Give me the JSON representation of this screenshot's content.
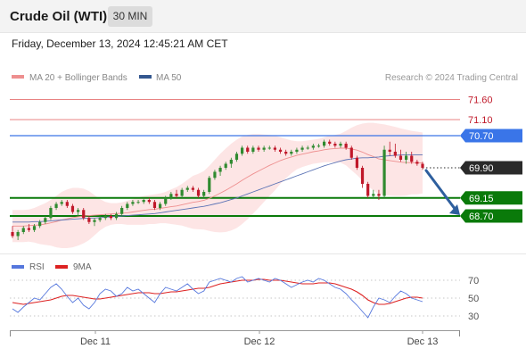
{
  "header": {
    "title": "Crude Oil (WTI)",
    "timeframe": "30 MIN",
    "datetime": "Friday, December 13, 2024 12:45:21 AM CET"
  },
  "legend": {
    "ma20_label": "MA 20 + Bollinger Bands",
    "ma50_label": "MA 50",
    "credit": "Research © 2024 Trading Central"
  },
  "colors": {
    "resistance": "#e05a5a",
    "resistance_main": "#3a75e8",
    "support": "#0a7a0a",
    "current": "#2a2a2a",
    "candle_up": "#2f8a2f",
    "candle_down": "#c0182a",
    "bb_fill": "#fde0e0",
    "ma20": "#ee8f8f",
    "ma50": "#5b73b5",
    "rsi": "#5577dd",
    "rsi_ma": "#dd2222",
    "arrow": "#2e5f9e"
  },
  "chart_data": [
    {
      "type": "candlestick",
      "title": "",
      "x_ticks": [
        "Dec 11",
        "Dec 12",
        "Dec 13"
      ],
      "ylim": [
        67.9,
        71.9
      ],
      "levels": [
        {
          "label": "71.60",
          "value": 71.6,
          "kind": "resistance"
        },
        {
          "label": "71.10",
          "value": 71.1,
          "kind": "resistance"
        },
        {
          "label": "70.70",
          "value": 70.7,
          "kind": "resistance_main"
        },
        {
          "label": "69.90",
          "value": 69.9,
          "kind": "current"
        },
        {
          "label": "69.15",
          "value": 69.15,
          "kind": "support"
        },
        {
          "label": "68.70",
          "value": 68.7,
          "kind": "support"
        }
      ],
      "candles": [
        [
          68.3,
          68.45,
          68.15,
          68.2
        ],
        [
          68.2,
          68.35,
          68.1,
          68.3
        ],
        [
          68.3,
          68.45,
          68.25,
          68.4
        ],
        [
          68.4,
          68.5,
          68.3,
          68.35
        ],
        [
          68.35,
          68.5,
          68.3,
          68.45
        ],
        [
          68.45,
          68.6,
          68.4,
          68.55
        ],
        [
          68.55,
          68.7,
          68.5,
          68.65
        ],
        [
          68.65,
          68.95,
          68.6,
          68.9
        ],
        [
          68.9,
          69.05,
          68.85,
          69.0
        ],
        [
          69.0,
          69.1,
          68.95,
          69.05
        ],
        [
          69.05,
          69.1,
          68.9,
          68.95
        ],
        [
          68.95,
          69.0,
          68.75,
          68.8
        ],
        [
          68.8,
          68.9,
          68.7,
          68.85
        ],
        [
          68.85,
          68.9,
          68.6,
          68.65
        ],
        [
          68.65,
          68.7,
          68.5,
          68.55
        ],
        [
          68.55,
          68.65,
          68.45,
          68.6
        ],
        [
          68.6,
          68.7,
          68.55,
          68.65
        ],
        [
          68.65,
          68.75,
          68.6,
          68.7
        ],
        [
          68.7,
          68.75,
          68.6,
          68.65
        ],
        [
          68.65,
          68.8,
          68.6,
          68.75
        ],
        [
          68.75,
          68.95,
          68.7,
          68.9
        ],
        [
          68.9,
          69.05,
          68.85,
          69.0
        ],
        [
          69.0,
          69.1,
          68.95,
          69.05
        ],
        [
          69.05,
          69.1,
          69.0,
          69.05
        ],
        [
          69.05,
          69.15,
          69.0,
          69.1
        ],
        [
          69.1,
          69.15,
          69.0,
          69.05
        ],
        [
          69.05,
          69.1,
          68.85,
          68.9
        ],
        [
          68.9,
          69.05,
          68.85,
          69.0
        ],
        [
          69.0,
          69.2,
          68.95,
          69.15
        ],
        [
          69.15,
          69.3,
          69.1,
          69.25
        ],
        [
          69.25,
          69.35,
          69.15,
          69.2
        ],
        [
          69.2,
          69.4,
          69.15,
          69.35
        ],
        [
          69.35,
          69.45,
          69.3,
          69.4
        ],
        [
          69.4,
          69.45,
          69.3,
          69.35
        ],
        [
          69.35,
          69.4,
          69.15,
          69.2
        ],
        [
          69.2,
          69.35,
          69.15,
          69.3
        ],
        [
          69.3,
          69.7,
          69.25,
          69.65
        ],
        [
          69.65,
          69.85,
          69.6,
          69.8
        ],
        [
          69.8,
          69.95,
          69.7,
          69.9
        ],
        [
          69.9,
          70.05,
          69.85,
          70.0
        ],
        [
          70.0,
          70.15,
          69.9,
          70.1
        ],
        [
          70.1,
          70.3,
          70.05,
          70.25
        ],
        [
          70.25,
          70.45,
          70.2,
          70.4
        ],
        [
          70.4,
          70.45,
          70.25,
          70.3
        ],
        [
          70.3,
          70.45,
          70.25,
          70.4
        ],
        [
          70.4,
          70.45,
          70.3,
          70.35
        ],
        [
          70.35,
          70.45,
          70.3,
          70.4
        ],
        [
          70.4,
          70.45,
          70.35,
          70.4
        ],
        [
          70.4,
          70.45,
          70.3,
          70.35
        ],
        [
          70.35,
          70.4,
          70.25,
          70.3
        ],
        [
          70.3,
          70.35,
          70.2,
          70.25
        ],
        [
          70.25,
          70.35,
          70.2,
          70.3
        ],
        [
          70.3,
          70.4,
          70.25,
          70.35
        ],
        [
          70.35,
          70.45,
          70.3,
          70.4
        ],
        [
          70.4,
          70.45,
          70.35,
          70.4
        ],
        [
          70.4,
          70.5,
          70.35,
          70.45
        ],
        [
          70.45,
          70.5,
          70.4,
          70.45
        ],
        [
          70.45,
          70.6,
          70.4,
          70.55
        ],
        [
          70.55,
          70.6,
          70.45,
          70.5
        ],
        [
          70.5,
          70.55,
          70.4,
          70.45
        ],
        [
          70.45,
          70.55,
          70.4,
          70.5
        ],
        [
          70.5,
          70.55,
          70.35,
          70.4
        ],
        [
          70.4,
          70.45,
          70.1,
          70.15
        ],
        [
          70.15,
          70.2,
          69.85,
          69.9
        ],
        [
          69.9,
          69.95,
          69.4,
          69.5
        ],
        [
          69.5,
          69.55,
          69.15,
          69.2
        ],
        [
          69.2,
          69.35,
          69.15,
          69.25
        ],
        [
          69.25,
          69.35,
          69.1,
          69.2
        ],
        [
          69.2,
          70.45,
          69.15,
          70.35
        ],
        [
          70.35,
          70.55,
          70.2,
          70.3
        ],
        [
          70.3,
          70.5,
          70.15,
          70.2
        ],
        [
          70.2,
          70.35,
          70.05,
          70.1
        ],
        [
          70.1,
          70.3,
          70.0,
          70.2
        ],
        [
          70.2,
          70.3,
          70.0,
          70.05
        ],
        [
          70.05,
          70.1,
          69.95,
          70.0
        ],
        [
          70.0,
          70.05,
          69.85,
          69.9
        ]
      ],
      "ma20": [
        68.45,
        68.45,
        68.45,
        68.46,
        68.47,
        68.48,
        68.5,
        68.53,
        68.56,
        68.6,
        68.63,
        68.66,
        68.68,
        68.7,
        68.71,
        68.72,
        68.73,
        68.74,
        68.75,
        68.76,
        68.77,
        68.78,
        68.8,
        68.82,
        68.84,
        68.86,
        68.87,
        68.89,
        68.91,
        68.93,
        68.95,
        68.98,
        69.01,
        69.04,
        69.06,
        69.09,
        69.14,
        69.2,
        69.27,
        69.34,
        69.42,
        69.5,
        69.59,
        69.67,
        69.75,
        69.82,
        69.89,
        69.96,
        70.02,
        70.08,
        70.13,
        70.17,
        70.21,
        70.24,
        70.27,
        70.3,
        70.32,
        70.35,
        70.37,
        70.38,
        70.39,
        70.39,
        70.37,
        70.34,
        70.29,
        70.23,
        70.18,
        70.12,
        70.1,
        70.08,
        70.06,
        70.04,
        70.03,
        70.03,
        70.02,
        70.02
      ],
      "ma50": [
        68.55,
        68.55,
        68.55,
        68.55,
        68.56,
        68.56,
        68.57,
        68.58,
        68.59,
        68.6,
        68.61,
        68.62,
        68.63,
        68.64,
        68.65,
        68.65,
        68.66,
        68.67,
        68.68,
        68.69,
        68.7,
        68.71,
        68.72,
        68.73,
        68.74,
        68.75,
        68.76,
        68.78,
        68.8,
        68.82,
        68.84,
        68.86,
        68.88,
        68.9,
        68.92,
        68.94,
        68.97,
        69.0,
        69.03,
        69.07,
        69.11,
        69.15,
        69.2,
        69.25,
        69.3,
        69.35,
        69.4,
        69.45,
        69.5,
        69.55,
        69.6,
        69.65,
        69.7,
        69.75,
        69.8,
        69.85,
        69.9,
        69.95,
        69.99,
        70.03,
        70.07,
        70.1,
        70.12,
        70.14,
        70.15,
        70.15,
        70.16,
        70.17,
        70.19,
        70.2,
        70.21,
        70.22,
        70.22,
        70.22,
        70.22,
        70.22
      ],
      "bb_upper": [
        68.85,
        68.85,
        68.85,
        68.86,
        68.9,
        68.96,
        69.02,
        69.1,
        69.2,
        69.3,
        69.36,
        69.4,
        69.4,
        69.38,
        69.32,
        69.22,
        69.12,
        69.05,
        69.02,
        69.02,
        69.04,
        69.08,
        69.12,
        69.16,
        69.2,
        69.22,
        69.24,
        69.26,
        69.3,
        69.36,
        69.42,
        69.5,
        69.6,
        69.7,
        69.75,
        69.82,
        69.95,
        70.1,
        70.25,
        70.38,
        70.5,
        70.6,
        70.68,
        70.72,
        70.74,
        70.74,
        70.73,
        70.72,
        70.7,
        70.66,
        70.62,
        70.58,
        70.56,
        70.56,
        70.58,
        70.6,
        70.62,
        70.66,
        70.7,
        70.72,
        70.75,
        70.82,
        70.9,
        70.96,
        71.0,
        71.02,
        71.02,
        71.0,
        70.98,
        70.95,
        70.92,
        70.88,
        70.85,
        70.82,
        70.8,
        70.78
      ],
      "bb_lower": [
        68.05,
        68.05,
        68.05,
        68.06,
        68.04,
        68.0,
        67.98,
        67.96,
        67.92,
        67.9,
        67.9,
        67.92,
        67.96,
        68.02,
        68.1,
        68.22,
        68.34,
        68.43,
        68.48,
        68.5,
        68.5,
        68.48,
        68.48,
        68.48,
        68.48,
        68.5,
        68.5,
        68.52,
        68.52,
        68.5,
        68.48,
        68.46,
        68.42,
        68.38,
        68.37,
        68.36,
        68.33,
        68.3,
        68.29,
        68.3,
        68.34,
        68.4,
        68.5,
        68.62,
        68.76,
        68.9,
        69.05,
        69.2,
        69.34,
        69.5,
        69.64,
        69.76,
        69.86,
        69.92,
        69.96,
        70.0,
        70.02,
        70.04,
        70.04,
        70.04,
        70.03,
        69.96,
        69.84,
        69.72,
        69.58,
        69.44,
        69.34,
        69.24,
        69.22,
        69.21,
        69.2,
        69.2,
        69.21,
        69.24,
        69.24,
        69.26
      ]
    },
    {
      "type": "line",
      "title": "",
      "ylim": [
        20,
        80
      ],
      "y_ticks": [
        70,
        50,
        30
      ],
      "legend": [
        "RSI",
        "9MA"
      ],
      "series": [
        {
          "name": "RSI",
          "values": [
            38,
            34,
            40,
            45,
            50,
            48,
            55,
            62,
            66,
            60,
            52,
            45,
            50,
            42,
            38,
            45,
            55,
            60,
            58,
            52,
            55,
            62,
            58,
            60,
            55,
            50,
            45,
            55,
            62,
            60,
            58,
            62,
            66,
            60,
            55,
            58,
            68,
            70,
            72,
            70,
            68,
            72,
            74,
            68,
            70,
            72,
            70,
            68,
            72,
            70,
            66,
            62,
            65,
            68,
            70,
            68,
            72,
            70,
            66,
            62,
            60,
            55,
            48,
            42,
            35,
            28,
            40,
            50,
            48,
            45,
            52,
            58,
            55,
            50,
            48,
            46
          ]
        },
        {
          "name": "9MA",
          "values": [
            45,
            44,
            43,
            44,
            45,
            46,
            47,
            48,
            50,
            52,
            53,
            53,
            52,
            51,
            50,
            49,
            49,
            50,
            51,
            52,
            53,
            54,
            55,
            56,
            56,
            56,
            55,
            55,
            56,
            57,
            57,
            58,
            59,
            60,
            61,
            61,
            62,
            64,
            66,
            67,
            68,
            69,
            70,
            70,
            70,
            71,
            71,
            70,
            70,
            70,
            69,
            68,
            67,
            66,
            66,
            66,
            67,
            67,
            67,
            66,
            64,
            62,
            60,
            57,
            53,
            48,
            45,
            43,
            43,
            44,
            46,
            48,
            50,
            51,
            51,
            50
          ]
        }
      ]
    }
  ]
}
